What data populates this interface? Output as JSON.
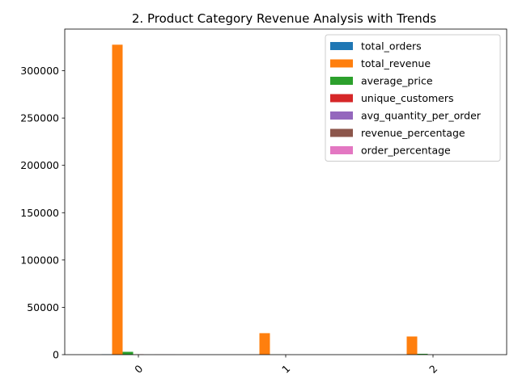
{
  "chart_data": {
    "type": "bar",
    "title": "2. Product Category Revenue Analysis with Trends",
    "xlabel": "",
    "ylabel": "",
    "categories": [
      "0",
      "1",
      "2"
    ],
    "ylim": [
      0,
      344000
    ],
    "yticks": [
      0,
      50000,
      100000,
      150000,
      200000,
      250000,
      300000
    ],
    "ytick_labels": [
      "0",
      "50000",
      "100000",
      "150000",
      "200000",
      "250000",
      "300000"
    ],
    "grid": false,
    "legend_position": "top-right",
    "series": [
      {
        "name": "total_orders",
        "color": "#1f77b4",
        "values": [
          300,
          20,
          60
        ]
      },
      {
        "name": "total_revenue",
        "color": "#ff7f0e",
        "values": [
          327500,
          22700,
          19200
        ]
      },
      {
        "name": "average_price",
        "color": "#2ca02c",
        "values": [
          3000,
          100,
          900
        ]
      },
      {
        "name": "unique_customers",
        "color": "#d62728",
        "values": [
          290,
          20,
          60
        ]
      },
      {
        "name": "avg_quantity_per_order",
        "color": "#9467bd",
        "values": [
          1,
          1,
          1
        ]
      },
      {
        "name": "revenue_percentage",
        "color": "#8c564b",
        "values": [
          88,
          6,
          5
        ]
      },
      {
        "name": "order_percentage",
        "color": "#e377c2",
        "values": [
          80,
          5,
          15
        ]
      }
    ]
  }
}
